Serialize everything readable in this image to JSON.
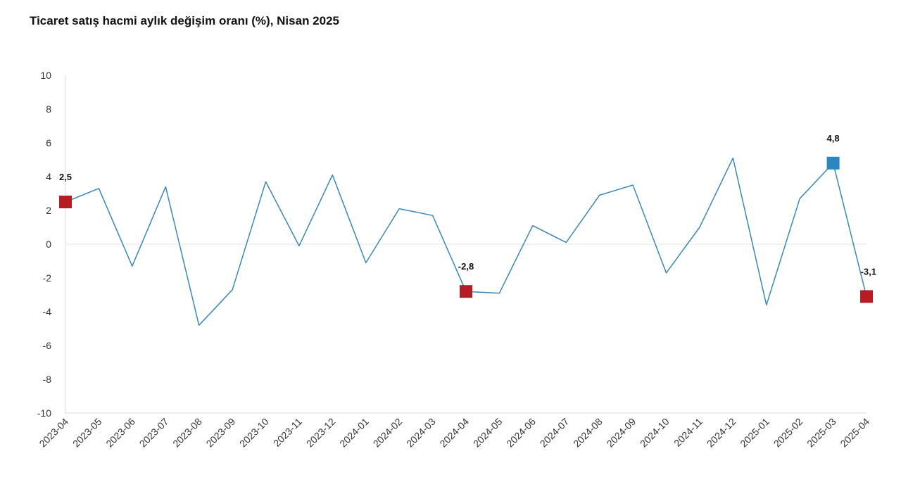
{
  "chart_data": {
    "type": "line",
    "title": "Ticaret satış hacmi aylık değişim oranı (%), Nisan 2025",
    "xlabel": "",
    "ylabel": "",
    "ylim": [
      -10,
      10
    ],
    "yticks": [
      10,
      8,
      6,
      4,
      2,
      0,
      -2,
      -4,
      -6,
      -8,
      -10
    ],
    "grid": "zero line only",
    "legend": "none",
    "categories": [
      "2023-04",
      "2023-05",
      "2023-06",
      "2023-07",
      "2023-08",
      "2023-09",
      "2023-10",
      "2023-11",
      "2023-12",
      "2024-01",
      "2024-02",
      "2024-03",
      "2024-04",
      "2024-05",
      "2024-06",
      "2024-07",
      "2024-08",
      "2024-09",
      "2024-10",
      "2024-11",
      "2024-12",
      "2025-01",
      "2025-02",
      "2025-03",
      "2025-04"
    ],
    "series": [
      {
        "values": [
          2.5,
          3.3,
          -1.3,
          3.4,
          -4.8,
          -2.7,
          3.7,
          -0.1,
          4.1,
          -1.1,
          2.1,
          1.7,
          -2.8,
          -2.9,
          1.1,
          0.1,
          2.9,
          3.5,
          -1.7,
          1.0,
          5.1,
          -3.6,
          2.7,
          4.8,
          -3.1
        ],
        "color": "#3a87bc"
      }
    ],
    "highlights": [
      {
        "index": 0,
        "label": "2,5",
        "color": "#b51c24"
      },
      {
        "index": 12,
        "label": "-2,8",
        "color": "#b51c24"
      },
      {
        "index": 23,
        "label": "4,8",
        "color": "#2e86c1"
      },
      {
        "index": 24,
        "label": "-3,1",
        "color": "#b51c24"
      }
    ]
  }
}
